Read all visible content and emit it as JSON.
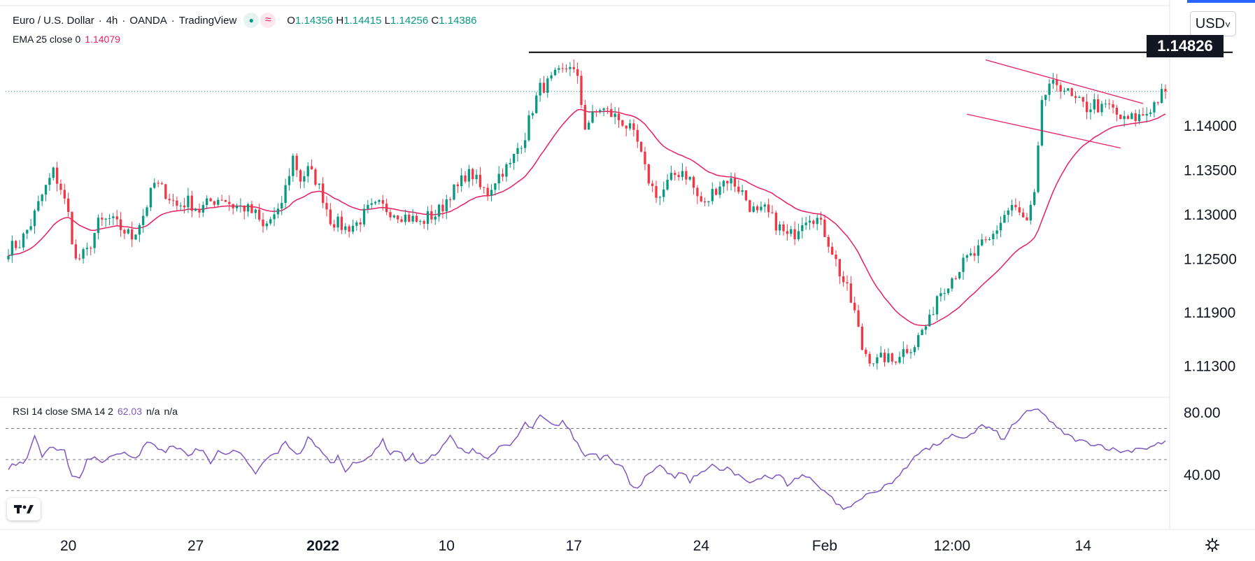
{
  "header": {
    "symbol": "Euro / U.S. Dollar",
    "interval": "4h",
    "broker": "OANDA",
    "source": "TradingView",
    "ohlc": {
      "o_label": "O",
      "o": "1.14356",
      "h_label": "H",
      "h": "1.14415",
      "l_label": "L",
      "l": "1.14256",
      "c_label": "C",
      "c": "1.14386"
    }
  },
  "indicators": {
    "ema": {
      "label": "EMA 25 close 0",
      "value": "1.14079"
    },
    "rsi": {
      "label": "RSI 14 close SMA 14 2",
      "value": "62.03",
      "extra1": "n/a",
      "extra2": "n/a"
    }
  },
  "currency_button": {
    "label": "USD",
    "caret": "˅"
  },
  "last_price_label": "1.14826",
  "icons": {
    "logo": "tradingview-logo-icon",
    "settings": "gear-icon"
  },
  "colors": {
    "up": "#089981",
    "down": "#f23645",
    "ema": "#e91e63",
    "rsi": "#7e57c2",
    "channel": "#e91e63",
    "resistance": "#000000"
  },
  "chart_data": [
    {
      "type": "candlestick",
      "title": "Euro / U.S. Dollar · 4h · OANDA",
      "ylim": [
        1.1095,
        1.1535
      ],
      "y_ticks": [
        "1.14000",
        "1.13500",
        "1.13000",
        "1.12500",
        "1.11900",
        "1.11300"
      ],
      "y_tick_values": [
        1.14,
        1.135,
        1.13,
        1.125,
        1.119,
        1.113
      ],
      "x_tick_labels": [
        "20",
        "27",
        "2022",
        "10",
        "17",
        "24",
        "Feb",
        "12:00",
        "14"
      ],
      "x_tick_index": [
        16,
        50,
        84,
        117,
        151,
        185,
        218,
        252,
        287
      ],
      "resistance": 1.14826,
      "current_price": 1.14386,
      "channel": {
        "upper": [
          [
            261,
            1.1474
          ],
          [
            303,
            1.1425
          ]
        ],
        "lower": [
          [
            256,
            1.1413
          ],
          [
            297,
            1.1375
          ]
        ]
      },
      "anchors_close": [
        [
          0,
          1.1262
        ],
        [
          3,
          1.1268
        ],
        [
          6,
          1.129
        ],
        [
          9,
          1.1322
        ],
        [
          12,
          1.1348
        ],
        [
          14,
          1.133
        ],
        [
          16,
          1.13
        ],
        [
          18,
          1.1248
        ],
        [
          21,
          1.1258
        ],
        [
          24,
          1.129
        ],
        [
          27,
          1.1295
        ],
        [
          30,
          1.1285
        ],
        [
          33,
          1.1275
        ],
        [
          36,
          1.13
        ],
        [
          39,
          1.1335
        ],
        [
          42,
          1.1325
        ],
        [
          45,
          1.131
        ],
        [
          48,
          1.1315
        ],
        [
          51,
          1.1305
        ],
        [
          54,
          1.1315
        ],
        [
          57,
          1.132
        ],
        [
          60,
          1.131
        ],
        [
          63,
          1.1308
        ],
        [
          66,
          1.13
        ],
        [
          68,
          1.1285
        ],
        [
          70,
          1.1295
        ],
        [
          72,
          1.13
        ],
        [
          74,
          1.133
        ],
        [
          76,
          1.1365
        ],
        [
          78,
          1.134
        ],
        [
          80,
          1.135
        ],
        [
          82,
          1.134
        ],
        [
          84,
          1.132
        ],
        [
          86,
          1.1295
        ],
        [
          88,
          1.129
        ],
        [
          90,
          1.1285
        ],
        [
          93,
          1.129
        ],
        [
          96,
          1.1305
        ],
        [
          99,
          1.131
        ],
        [
          102,
          1.1305
        ],
        [
          105,
          1.13
        ],
        [
          108,
          1.1295
        ],
        [
          110,
          1.129
        ],
        [
          112,
          1.1298
        ],
        [
          114,
          1.13
        ],
        [
          116,
          1.131
        ],
        [
          118,
          1.1325
        ],
        [
          120,
          1.133
        ],
        [
          122,
          1.1345
        ],
        [
          124,
          1.1345
        ],
        [
          126,
          1.133
        ],
        [
          128,
          1.1325
        ],
        [
          130,
          1.134
        ],
        [
          132,
          1.135
        ],
        [
          134,
          1.1355
        ],
        [
          136,
          1.1375
        ],
        [
          138,
          1.139
        ],
        [
          140,
          1.142
        ],
        [
          142,
          1.1442
        ],
        [
          144,
          1.1447
        ],
        [
          146,
          1.1455
        ],
        [
          148,
          1.146
        ],
        [
          150,
          1.147
        ],
        [
          152,
          1.145
        ],
        [
          154,
          1.14
        ],
        [
          156,
          1.141
        ],
        [
          158,
          1.142
        ],
        [
          160,
          1.1415
        ],
        [
          162,
          1.141
        ],
        [
          164,
          1.1405
        ],
        [
          166,
          1.1395
        ],
        [
          168,
          1.138
        ],
        [
          170,
          1.135
        ],
        [
          172,
          1.133
        ],
        [
          174,
          1.132
        ],
        [
          176,
          1.1335
        ],
        [
          178,
          1.1345
        ],
        [
          180,
          1.135
        ],
        [
          182,
          1.134
        ],
        [
          184,
          1.132
        ],
        [
          186,
          1.131
        ],
        [
          188,
          1.1325
        ],
        [
          190,
          1.1335
        ],
        [
          192,
          1.134
        ],
        [
          194,
          1.1335
        ],
        [
          196,
          1.1325
        ],
        [
          198,
          1.131
        ],
        [
          200,
          1.13
        ],
        [
          202,
          1.1305
        ],
        [
          204,
          1.1295
        ],
        [
          206,
          1.1285
        ],
        [
          208,
          1.1275
        ],
        [
          210,
          1.128
        ],
        [
          212,
          1.1295
        ],
        [
          214,
          1.13
        ],
        [
          216,
          1.1295
        ],
        [
          218,
          1.128
        ],
        [
          220,
          1.126
        ],
        [
          222,
          1.1235
        ],
        [
          224,
          1.1215
        ],
        [
          226,
          1.119
        ],
        [
          228,
          1.115
        ],
        [
          230,
          1.114
        ],
        [
          232,
          1.1135
        ],
        [
          234,
          1.114
        ],
        [
          236,
          1.1135
        ],
        [
          238,
          1.1145
        ],
        [
          240,
          1.115
        ],
        [
          242,
          1.1155
        ],
        [
          244,
          1.117
        ],
        [
          246,
          1.118
        ],
        [
          248,
          1.121
        ],
        [
          250,
          1.122
        ],
        [
          252,
          1.123
        ],
        [
          254,
          1.124
        ],
        [
          256,
          1.125
        ],
        [
          258,
          1.1255
        ],
        [
          260,
          1.1265
        ],
        [
          262,
          1.127
        ],
        [
          264,
          1.1285
        ],
        [
          266,
          1.13
        ],
        [
          268,
          1.131
        ],
        [
          270,
          1.13
        ],
        [
          272,
          1.129
        ],
        [
          274,
          1.132
        ],
        [
          275,
          1.137
        ],
        [
          276,
          1.143
        ],
        [
          278,
          1.144
        ],
        [
          280,
          1.1448
        ],
        [
          282,
          1.1442
        ],
        [
          284,
          1.143
        ],
        [
          286,
          1.1425
        ],
        [
          288,
          1.142
        ],
        [
          290,
          1.1425
        ],
        [
          292,
          1.1418
        ],
        [
          294,
          1.1422
        ],
        [
          296,
          1.1412
        ],
        [
          298,
          1.1405
        ],
        [
          300,
          1.1408
        ],
        [
          302,
          1.141
        ],
        [
          304,
          1.1415
        ],
        [
          306,
          1.1425
        ],
        [
          308,
          1.1435
        ],
        [
          309,
          1.14386
        ]
      ],
      "ema_period": 25
    },
    {
      "type": "line",
      "title": "RSI 14 close SMA 14 2",
      "ylim": [
        5,
        90
      ],
      "y_ticks": [
        "80.00",
        "40.00"
      ],
      "y_tick_values": [
        80,
        40
      ],
      "levels": [
        70,
        50,
        30
      ],
      "last_value": 62.03,
      "anchors": [
        [
          0,
          45
        ],
        [
          3,
          48
        ],
        [
          5,
          50
        ],
        [
          7,
          66
        ],
        [
          9,
          52
        ],
        [
          11,
          58
        ],
        [
          13,
          55
        ],
        [
          15,
          55
        ],
        [
          17,
          40
        ],
        [
          19,
          38
        ],
        [
          21,
          50
        ],
        [
          23,
          52
        ],
        [
          25,
          47
        ],
        [
          27,
          53
        ],
        [
          30,
          55
        ],
        [
          32,
          52
        ],
        [
          34,
          50
        ],
        [
          36,
          58
        ],
        [
          38,
          62
        ],
        [
          40,
          57
        ],
        [
          42,
          54
        ],
        [
          44,
          60
        ],
        [
          46,
          56
        ],
        [
          48,
          52
        ],
        [
          50,
          57
        ],
        [
          52,
          55
        ],
        [
          54,
          48
        ],
        [
          56,
          57
        ],
        [
          58,
          52
        ],
        [
          60,
          55
        ],
        [
          62,
          53
        ],
        [
          64,
          48
        ],
        [
          66,
          40
        ],
        [
          68,
          48
        ],
        [
          70,
          52
        ],
        [
          72,
          55
        ],
        [
          74,
          61
        ],
        [
          76,
          56
        ],
        [
          78,
          53
        ],
        [
          80,
          65
        ],
        [
          82,
          58
        ],
        [
          84,
          55
        ],
        [
          86,
          47
        ],
        [
          88,
          52
        ],
        [
          90,
          43
        ],
        [
          92,
          49
        ],
        [
          94,
          47
        ],
        [
          96,
          51
        ],
        [
          98,
          57
        ],
        [
          100,
          62
        ],
        [
          102,
          54
        ],
        [
          104,
          56
        ],
        [
          106,
          50
        ],
        [
          108,
          53
        ],
        [
          110,
          46
        ],
        [
          112,
          51
        ],
        [
          114,
          53
        ],
        [
          116,
          58
        ],
        [
          118,
          65
        ],
        [
          120,
          58
        ],
        [
          122,
          54
        ],
        [
          124,
          57
        ],
        [
          126,
          54
        ],
        [
          128,
          50
        ],
        [
          130,
          56
        ],
        [
          132,
          58
        ],
        [
          134,
          59
        ],
        [
          136,
          65
        ],
        [
          138,
          73
        ],
        [
          140,
          70
        ],
        [
          142,
          78
        ],
        [
          144,
          74
        ],
        [
          146,
          71
        ],
        [
          148,
          75
        ],
        [
          150,
          68
        ],
        [
          152,
          60
        ],
        [
          154,
          52
        ],
        [
          156,
          55
        ],
        [
          158,
          51
        ],
        [
          160,
          54
        ],
        [
          162,
          48
        ],
        [
          164,
          45
        ],
        [
          166,
          35
        ],
        [
          168,
          32
        ],
        [
          170,
          38
        ],
        [
          172,
          42
        ],
        [
          174,
          45
        ],
        [
          176,
          42
        ],
        [
          178,
          38
        ],
        [
          180,
          42
        ],
        [
          182,
          36
        ],
        [
          184,
          40
        ],
        [
          186,
          44
        ],
        [
          188,
          47
        ],
        [
          190,
          42
        ],
        [
          192,
          45
        ],
        [
          194,
          40
        ],
        [
          196,
          38
        ],
        [
          198,
          35
        ],
        [
          200,
          38
        ],
        [
          202,
          40
        ],
        [
          204,
          38
        ],
        [
          206,
          40
        ],
        [
          208,
          34
        ],
        [
          210,
          37
        ],
        [
          212,
          40
        ],
        [
          214,
          38
        ],
        [
          216,
          34
        ],
        [
          218,
          30
        ],
        [
          220,
          25
        ],
        [
          222,
          20
        ],
        [
          224,
          18
        ],
        [
          226,
          22
        ],
        [
          228,
          25
        ],
        [
          230,
          30
        ],
        [
          232,
          28
        ],
        [
          234,
          33
        ],
        [
          236,
          36
        ],
        [
          238,
          40
        ],
        [
          240,
          45
        ],
        [
          242,
          53
        ],
        [
          244,
          56
        ],
        [
          246,
          57
        ],
        [
          248,
          60
        ],
        [
          250,
          62
        ],
        [
          252,
          65
        ],
        [
          254,
          63
        ],
        [
          256,
          65
        ],
        [
          258,
          68
        ],
        [
          260,
          72
        ],
        [
          262,
          70
        ],
        [
          264,
          67
        ],
        [
          266,
          62
        ],
        [
          268,
          72
        ],
        [
          270,
          76
        ],
        [
          272,
          80
        ],
        [
          274,
          82
        ],
        [
          276,
          81
        ],
        [
          278,
          75
        ],
        [
          280,
          70
        ],
        [
          282,
          67
        ],
        [
          284,
          64
        ],
        [
          286,
          62
        ],
        [
          288,
          61
        ],
        [
          290,
          60
        ],
        [
          292,
          59
        ],
        [
          294,
          57
        ],
        [
          296,
          56
        ],
        [
          298,
          55
        ],
        [
          300,
          56
        ],
        [
          302,
          58
        ],
        [
          304,
          57
        ],
        [
          306,
          59
        ],
        [
          308,
          61
        ],
        [
          309,
          62.03
        ]
      ]
    }
  ]
}
